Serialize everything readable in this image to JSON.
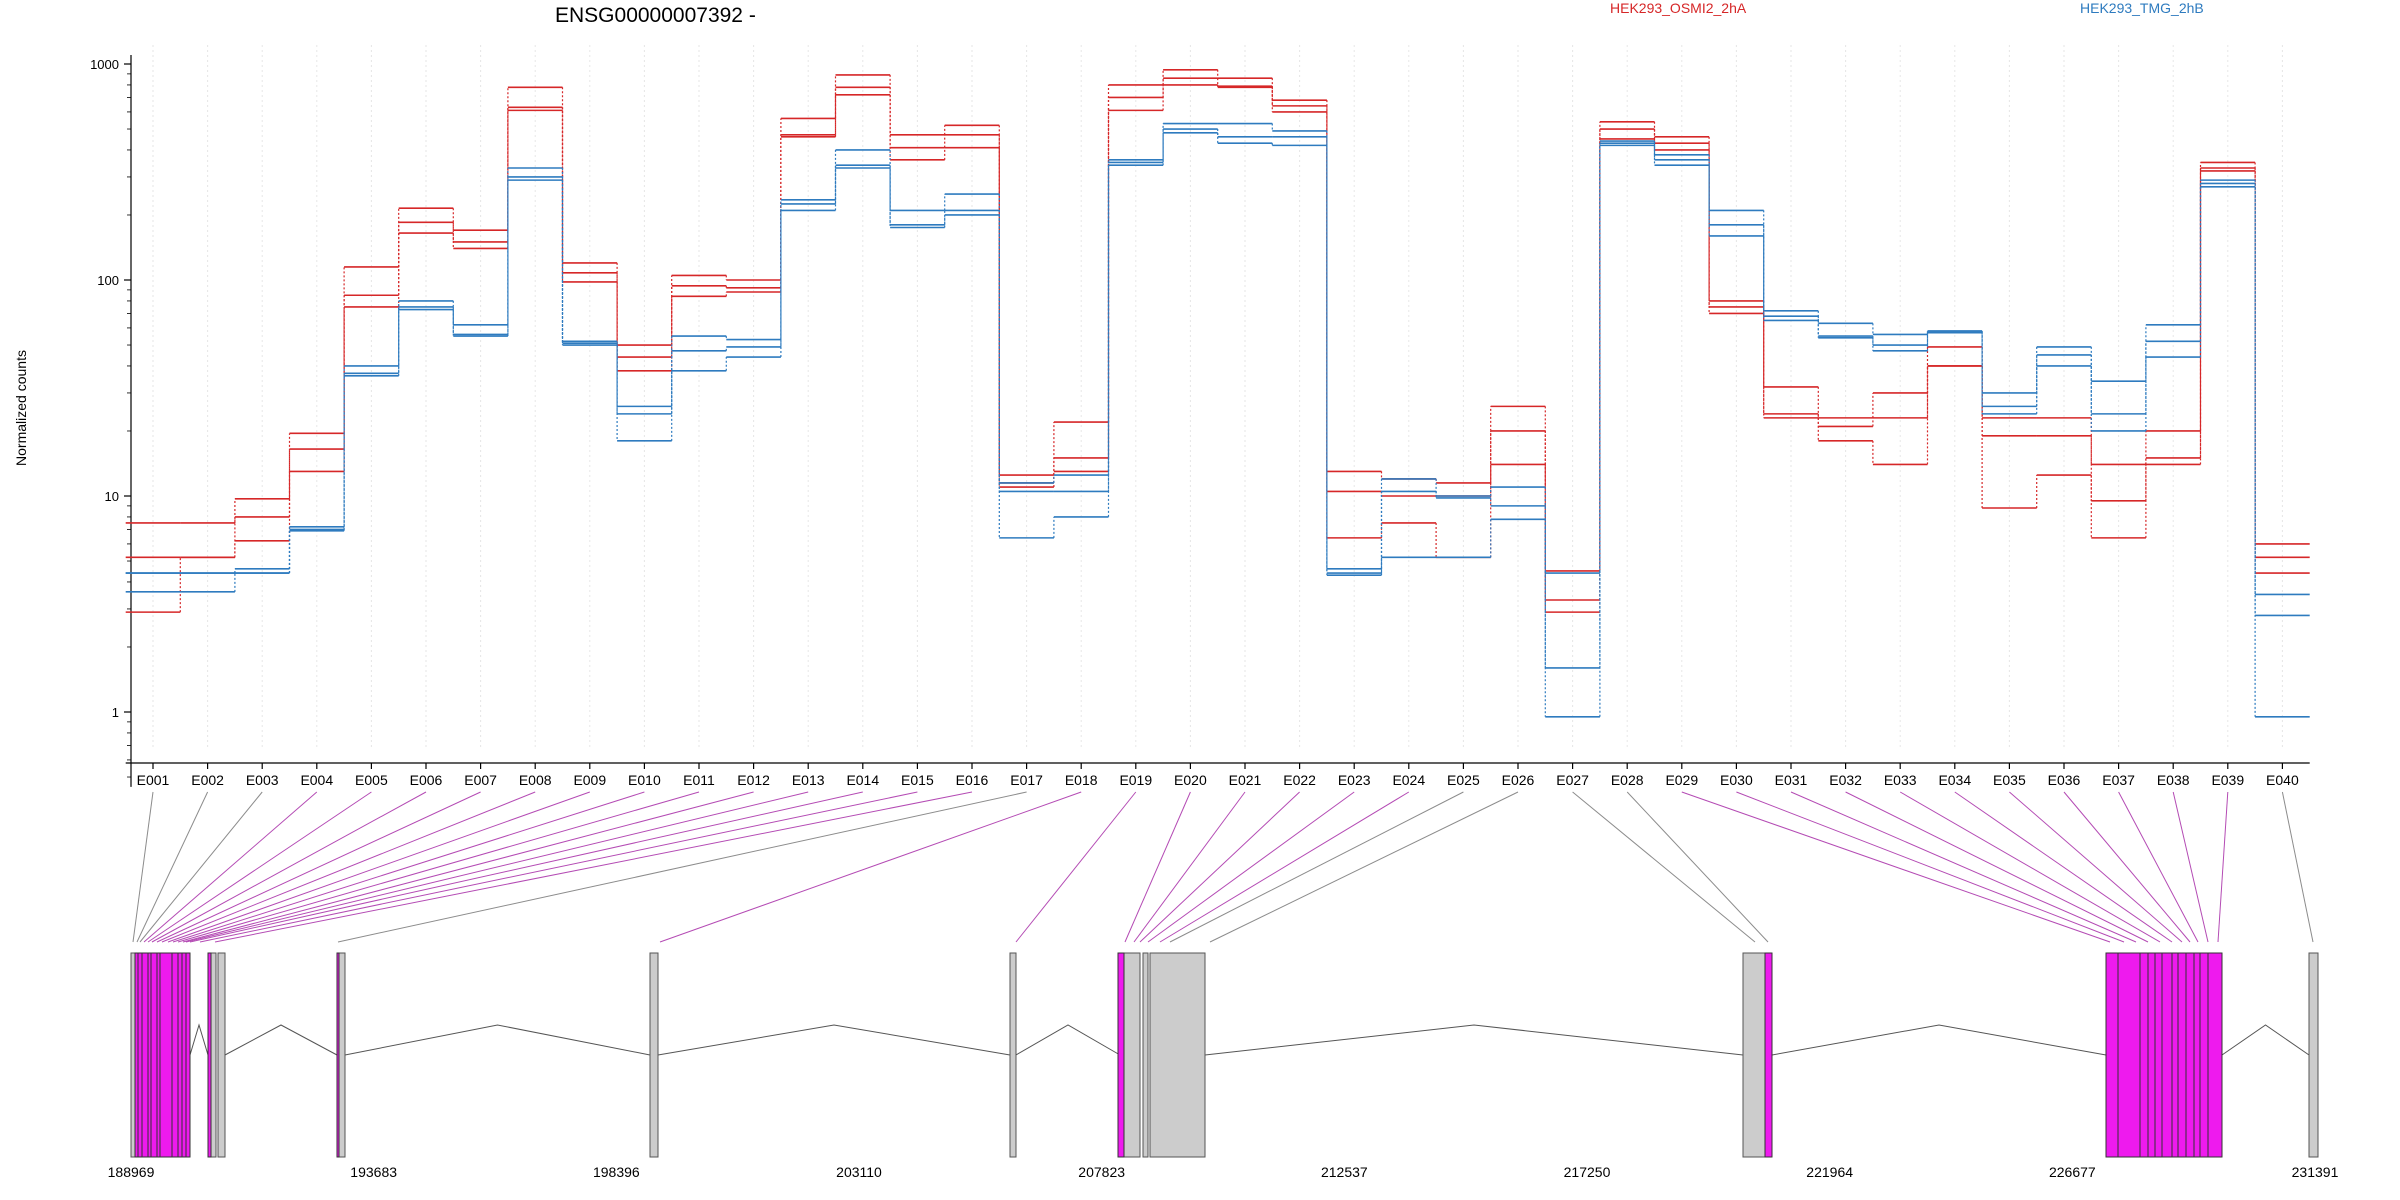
{
  "chart_data": {
    "type": "line",
    "title": "ENSG00000007392 -",
    "ylabel": "Normalized counts",
    "yscale": "log",
    "ylim": [
      0.45,
      1100
    ],
    "yticks": [
      1,
      10,
      100,
      1000
    ],
    "ytick_labels": [
      "1",
      "10",
      "100",
      "1000"
    ],
    "grid": "vertical dotted lines at exon centers",
    "legend_placement": "top",
    "legend": [
      {
        "label": "HEK293_OSMI2_2hA",
        "color": "#d62728"
      },
      {
        "label": "HEK293_TMG_2hB",
        "color": "#2e7bbf"
      }
    ],
    "categories": [
      "E001",
      "E002",
      "E003",
      "E004",
      "E005",
      "E006",
      "E007",
      "E008",
      "E009",
      "E010",
      "E011",
      "E012",
      "E013",
      "E014",
      "E015",
      "E016",
      "E017",
      "E018",
      "E019",
      "E020",
      "E021",
      "E022",
      "E023",
      "E024",
      "E025",
      "E026",
      "E027",
      "E028",
      "E029",
      "E030",
      "E031",
      "E032",
      "E033",
      "E034",
      "E035",
      "E036",
      "E037",
      "E038",
      "E039",
      "E040"
    ],
    "series": [
      {
        "group": "HEK293_OSMI2_2hA",
        "values": [
          7.5,
          7.5,
          9.7,
          19.5,
          115,
          215,
          170,
          780,
          120,
          50,
          105,
          100,
          560,
          890,
          470,
          520,
          12.5,
          22,
          800,
          940,
          860,
          680,
          13,
          12,
          11.5,
          26,
          4.5,
          540,
          460,
          80,
          32,
          23,
          30,
          49,
          23,
          23,
          14,
          20,
          350,
          6
        ]
      },
      {
        "group": "HEK293_OSMI2_2hA",
        "values": [
          5.2,
          5.2,
          8,
          16.5,
          85,
          185,
          150,
          630,
          108,
          44,
          94,
          92,
          470,
          780,
          410,
          470,
          11.5,
          15,
          700,
          860,
          790,
          640,
          10.5,
          10,
          10,
          20,
          3.3,
          500,
          430,
          75,
          24,
          21,
          23,
          40,
          19,
          19,
          9.5,
          15,
          330,
          5.2
        ]
      },
      {
        "group": "HEK293_OSMI2_2hA",
        "values": [
          2.9,
          5.2,
          6.2,
          13,
          75,
          165,
          140,
          610,
          98,
          38,
          84,
          88,
          460,
          720,
          360,
          410,
          11,
          13,
          610,
          800,
          780,
          600,
          6.4,
          7.5,
          5.2,
          14,
          2.9,
          450,
          400,
          70,
          23,
          18,
          14,
          40,
          8.8,
          12.5,
          6.4,
          14,
          320,
          4.4
        ]
      },
      {
        "group": "HEK293_TMG_2hB",
        "values": [
          4.4,
          4.4,
          4.6,
          7.2,
          40,
          80,
          62,
          330,
          52,
          26,
          55,
          53,
          235,
          400,
          210,
          250,
          11.5,
          12.5,
          360,
          530,
          530,
          490,
          4.6,
          12,
          10,
          11,
          4.4,
          440,
          380,
          210,
          72,
          63,
          56,
          58,
          30,
          49,
          34,
          62,
          290,
          3.5
        ]
      },
      {
        "group": "HEK293_TMG_2hB",
        "values": [
          4.4,
          4.4,
          4.4,
          7,
          37,
          75,
          56,
          300,
          51,
          24,
          47,
          49,
          225,
          340,
          180,
          210,
          10.5,
          10.5,
          350,
          500,
          460,
          460,
          4.4,
          10.5,
          9.8,
          9,
          1.6,
          430,
          360,
          180,
          68,
          55,
          50,
          58,
          26,
          45,
          24,
          52,
          280,
          2.8
        ]
      },
      {
        "group": "HEK293_TMG_2hB",
        "values": [
          3.6,
          3.6,
          4.4,
          6.9,
          36,
          73,
          55,
          290,
          50,
          18,
          38,
          44,
          210,
          330,
          175,
          200,
          6.4,
          8,
          340,
          480,
          430,
          420,
          4.3,
          5.2,
          5.2,
          7.8,
          0.95,
          420,
          340,
          160,
          65,
          54,
          47,
          57,
          24,
          40,
          20,
          44,
          270,
          0.95
        ]
      }
    ],
    "gene_model": {
      "coord_ticks": [
        "188969",
        "193683",
        "198396",
        "203110",
        "207823",
        "212537",
        "217250",
        "221964",
        "226677",
        "231391"
      ]
    }
  }
}
